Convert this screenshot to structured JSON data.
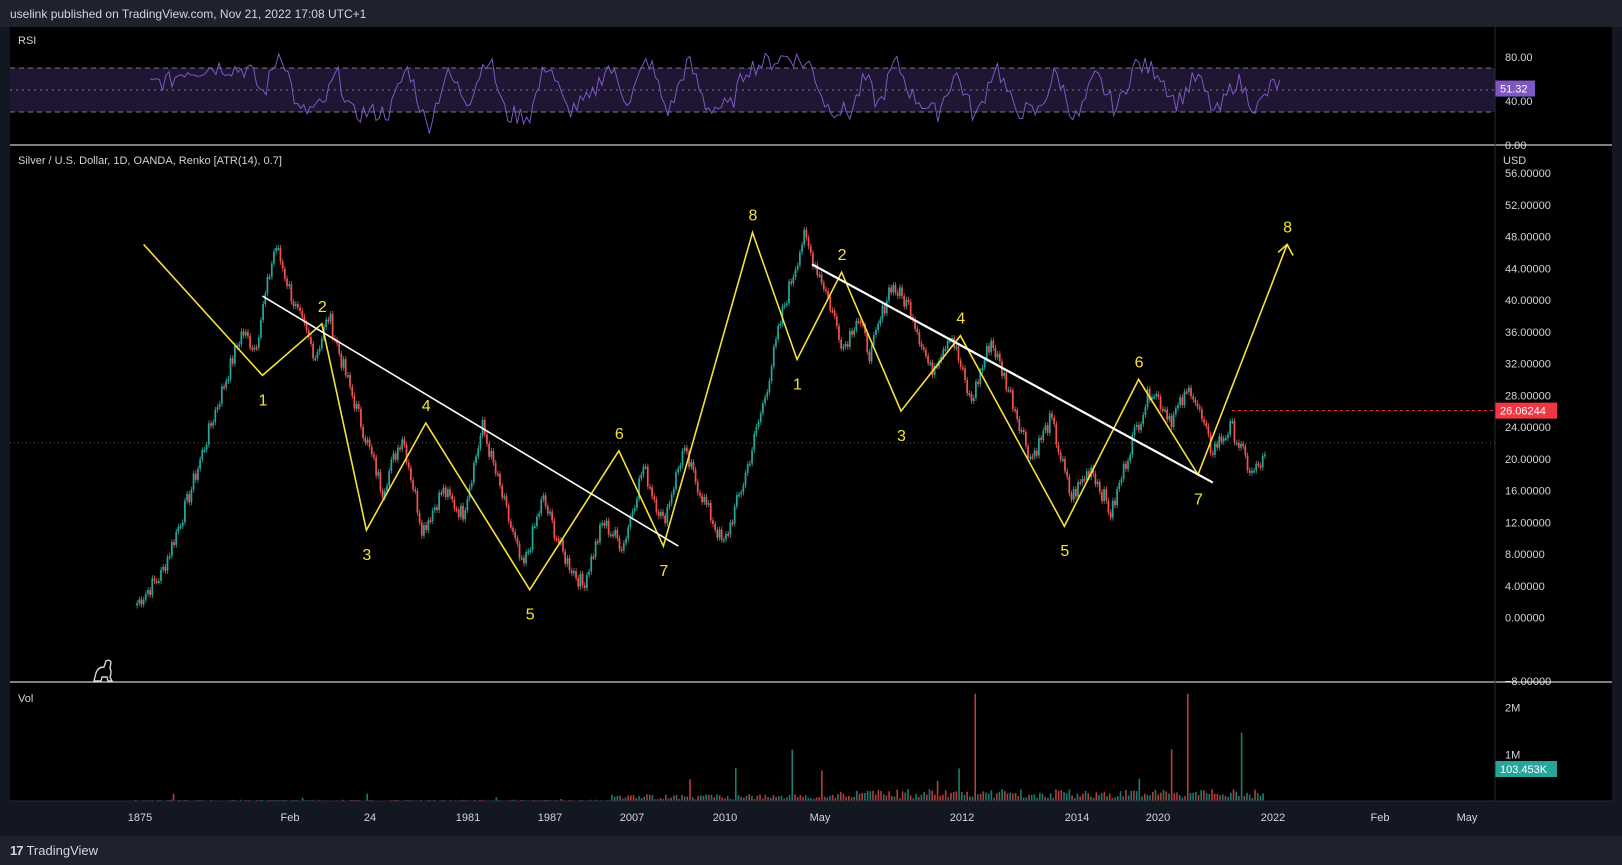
{
  "header": {
    "text": "uselink published on TradingView.com, Nov 21, 2022 17:08 UTC+1"
  },
  "footer": {
    "brand": "TradingView",
    "logo_mark": "17"
  },
  "colors": {
    "background": "#000000",
    "panel": "#131722",
    "up": "#26a69a",
    "down": "#ef5350",
    "rsi_line": "#7e57c2",
    "rsi_band": "#1f1633",
    "wave": "#f5e13b",
    "trend": "#ffffff",
    "price_badge": "#f23645",
    "rsi_badge": "#7e57c2",
    "vol_badge": "#26a69a"
  },
  "chart_data": {
    "type": "line",
    "title": "Silver / U.S. Dollar, 1D, OANDA, Renko [ATR(14), 0.7]",
    "ylabel": "USD",
    "ylim": [
      -8,
      56
    ],
    "y_ticks": [
      "56.00000",
      "52.00000",
      "48.00000",
      "44.00000",
      "40.00000",
      "36.00000",
      "32.00000",
      "28.00000",
      "24.00000",
      "20.00000",
      "16.00000",
      "12.00000",
      "8.00000",
      "4.00000",
      "0.00000",
      "−8.00000"
    ],
    "y_tick_values": [
      56,
      52,
      48,
      44,
      40,
      36,
      32,
      28,
      24,
      20,
      16,
      12,
      8,
      4,
      0,
      -8
    ],
    "x_ticks": [
      "1875",
      "Feb",
      "24",
      "1981",
      "1987",
      "2007",
      "2010",
      "May",
      "2012",
      "2014",
      "2020",
      "2022",
      "Feb",
      "May"
    ],
    "last_price": "26.06244",
    "last_price_value": 26.06,
    "price_path": [
      [
        0,
        1.5
      ],
      [
        4,
        5.5
      ],
      [
        8,
        15
      ],
      [
        12,
        26
      ],
      [
        16,
        36
      ],
      [
        18,
        34
      ],
      [
        21,
        47
      ],
      [
        24,
        39
      ],
      [
        27,
        33
      ],
      [
        29,
        38
      ],
      [
        31,
        32
      ],
      [
        34,
        24
      ],
      [
        37,
        16
      ],
      [
        40,
        23
      ],
      [
        43,
        11
      ],
      [
        46,
        16
      ],
      [
        49,
        13
      ],
      [
        52,
        24
      ],
      [
        55,
        15
      ],
      [
        58,
        6
      ],
      [
        61,
        15
      ],
      [
        64,
        8
      ],
      [
        67,
        4
      ],
      [
        70,
        12
      ],
      [
        73,
        9
      ],
      [
        76,
        19
      ],
      [
        79,
        12
      ],
      [
        82,
        21
      ],
      [
        85,
        15
      ],
      [
        88,
        9
      ],
      [
        91,
        17
      ],
      [
        94,
        27
      ],
      [
        97,
        39
      ],
      [
        100,
        48
      ],
      [
        103,
        42
      ],
      [
        106,
        34
      ],
      [
        108,
        38
      ],
      [
        110,
        33
      ],
      [
        113,
        42
      ],
      [
        116,
        39
      ],
      [
        119,
        31
      ],
      [
        122,
        36
      ],
      [
        125,
        27
      ],
      [
        128,
        35
      ],
      [
        131,
        28
      ],
      [
        134,
        20
      ],
      [
        137,
        25
      ],
      [
        140,
        15
      ],
      [
        143,
        19
      ],
      [
        146,
        13
      ],
      [
        149,
        22
      ],
      [
        152,
        29
      ],
      [
        155,
        25
      ],
      [
        158,
        29
      ],
      [
        161,
        21
      ],
      [
        164,
        24
      ],
      [
        167,
        18
      ],
      [
        169,
        20
      ]
    ],
    "wave_labels": [
      {
        "label": "1",
        "i": 0.17,
        "v": 30.5
      },
      {
        "label": "2",
        "i": 0.21,
        "v": 37
      },
      {
        "label": "3",
        "i": 0.24,
        "v": 11
      },
      {
        "label": "4",
        "i": 0.28,
        "v": 24.5
      },
      {
        "label": "5",
        "i": 0.35,
        "v": 3.5
      },
      {
        "label": "6",
        "i": 0.41,
        "v": 21
      },
      {
        "label": "7",
        "i": 0.44,
        "v": 9
      },
      {
        "label": "8",
        "i": 0.5,
        "v": 48.5
      },
      {
        "label": "1",
        "i": 0.53,
        "v": 32.5
      },
      {
        "label": "2",
        "i": 0.56,
        "v": 43.5
      },
      {
        "label": "3",
        "i": 0.6,
        "v": 26
      },
      {
        "label": "4",
        "i": 0.64,
        "v": 35.5
      },
      {
        "label": "5",
        "i": 0.71,
        "v": 11.5
      },
      {
        "label": "6",
        "i": 0.76,
        "v": 30
      },
      {
        "label": "7",
        "i": 0.8,
        "v": 18
      },
      {
        "label": "8",
        "i": 0.86,
        "v": 47
      }
    ],
    "series": [
      {
        "name": "RSI",
        "value": "51.32",
        "ylim": [
          0,
          100
        ],
        "ticks": [
          "80.00",
          "40.00",
          "0.00"
        ],
        "tick_values": [
          80,
          40,
          0
        ],
        "bands": [
          70,
          50,
          30
        ]
      },
      {
        "name": "Vol",
        "value": "103.453K",
        "ticks": [
          "2M",
          "1M"
        ],
        "tick_values": [
          2000000,
          1000000
        ],
        "ylim": [
          0,
          2400000
        ]
      }
    ]
  }
}
